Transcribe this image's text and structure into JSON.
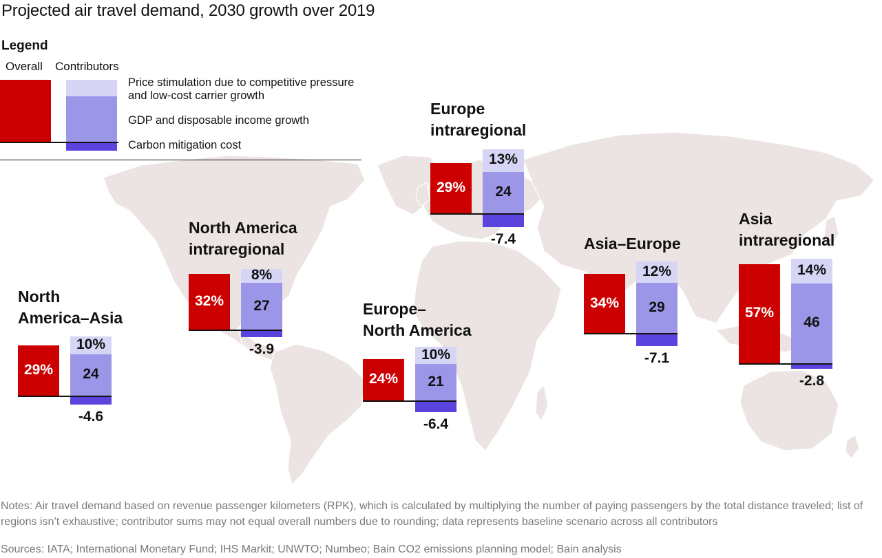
{
  "title": "Projected air travel demand, 2030 growth over 2019",
  "colors": {
    "overall": "#cc0000",
    "price": "#d6d5f6",
    "gdp": "#9c96e8",
    "carbon": "#5b43dd",
    "map": "#ebe4e2"
  },
  "legend": {
    "heading": "Legend",
    "overall_label": "Overall",
    "contributors_label": "Contributors",
    "price_label": "Price stimulation due to competitive pressure and low-cost carrier growth",
    "gdp_label": "GDP and disposable income growth",
    "carbon_label": "Carbon mitigation cost"
  },
  "chart_data": {
    "type": "bar",
    "title": "Projected air travel demand, 2030 growth over 2019",
    "unit": "%",
    "series_names": [
      "Overall",
      "Price stimulation due to competitive pressure and low-cost carrier growth",
      "GDP and disposable income growth",
      "Carbon mitigation cost"
    ],
    "regions": [
      {
        "name": "North America–Asia",
        "overall": 29,
        "overall_label": "29%",
        "price": 10,
        "price_label": "10%",
        "gdp": 24,
        "gdp_label": "24",
        "carbon": -4.6,
        "carbon_label": "-4.6"
      },
      {
        "name": "North America intraregional",
        "overall": 32,
        "overall_label": "32%",
        "price": 8,
        "price_label": "8%",
        "gdp": 27,
        "gdp_label": "27",
        "carbon": -3.9,
        "carbon_label": "-3.9"
      },
      {
        "name": "Europe–North America",
        "overall": 24,
        "overall_label": "24%",
        "price": 10,
        "price_label": "10%",
        "gdp": 21,
        "gdp_label": "21",
        "carbon": -6.4,
        "carbon_label": "-6.4"
      },
      {
        "name": "Europe intraregional",
        "overall": 29,
        "overall_label": "29%",
        "price": 13,
        "price_label": "13%",
        "gdp": 24,
        "gdp_label": "24",
        "carbon": -7.4,
        "carbon_label": "-7.4"
      },
      {
        "name": "Asia–Europe",
        "overall": 34,
        "overall_label": "34%",
        "price": 12,
        "price_label": "12%",
        "gdp": 29,
        "gdp_label": "29",
        "carbon": -7.1,
        "carbon_label": "-7.1"
      },
      {
        "name": "Asia intraregional",
        "overall": 57,
        "overall_label": "57%",
        "price": 14,
        "price_label": "14%",
        "gdp": 46,
        "gdp_label": "46",
        "carbon": -2.8,
        "carbon_label": "-2.8"
      }
    ]
  },
  "notes": "Notes: Air travel demand based on revenue passenger kilometers (RPK), which is calculated by multiplying the number of paying passengers by the total distance traveled; list of regions isn’t exhaustive; contributor sums may not equal overall numbers due to rounding; data represents baseline scenario across all contributors",
  "sources": "Sources: IATA; International Monetary Fund; IHS Markit; UNWTO; Numbeo; Bain CO2 emissions planning model; Bain analysis"
}
